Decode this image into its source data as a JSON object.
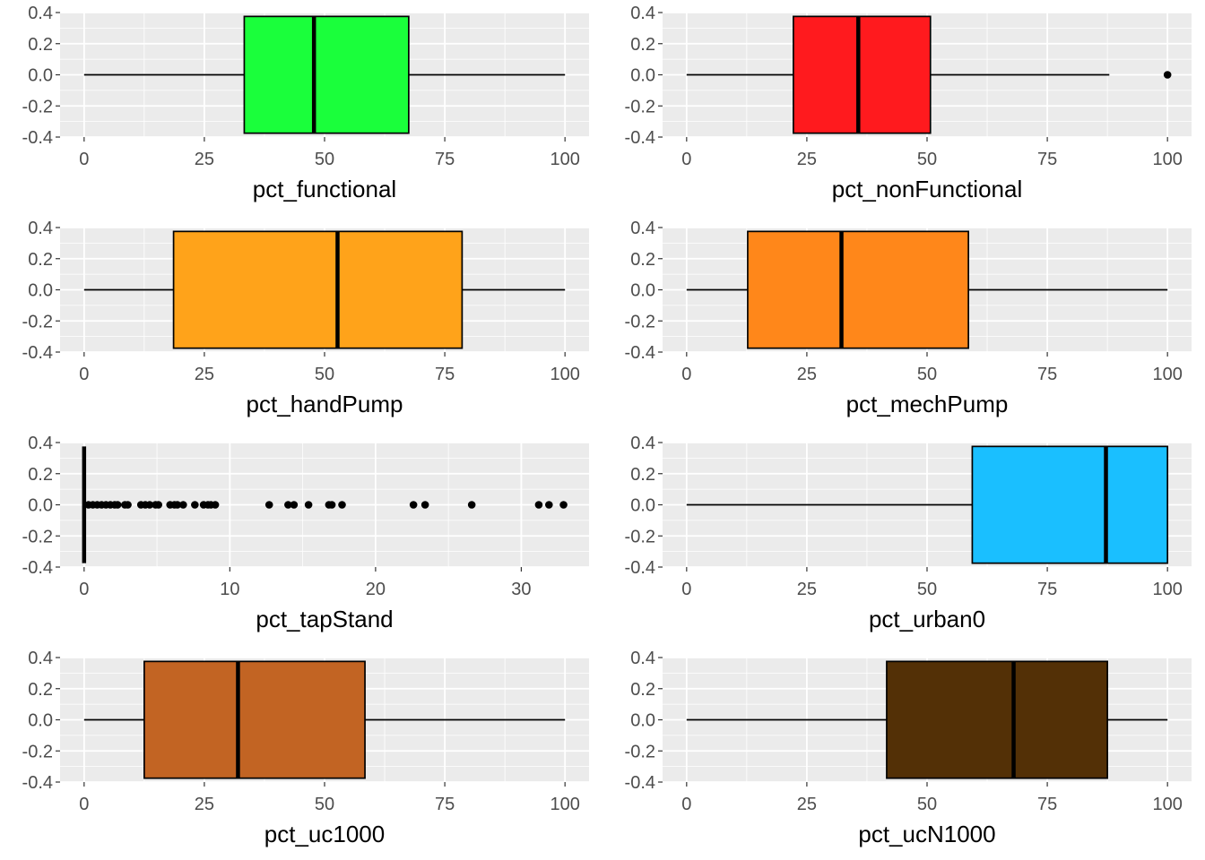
{
  "colors": {
    "panel_bg": "#ebebeb",
    "grid_major": "#ffffff",
    "tick_text": "#4d4d4d",
    "tick_line": "#333333"
  },
  "chart_data": [
    {
      "type": "boxplot",
      "xlabel": "pct_functional",
      "xlim": [
        -5,
        105
      ],
      "xticks": [
        0,
        25,
        50,
        75,
        100
      ],
      "ylim": [
        -0.4,
        0.4
      ],
      "yticks": [
        "0.4",
        "0.2",
        "0.0",
        "-0.2",
        "-0.4"
      ],
      "box": {
        "whisker_low": 0,
        "q1": 33.3,
        "median": 47.8,
        "q3": 67.5,
        "whisker_high": 100,
        "fill": "#1aff3b",
        "outliers": []
      }
    },
    {
      "type": "boxplot",
      "xlabel": "pct_nonFunctional",
      "xlim": [
        -5,
        105
      ],
      "xticks": [
        0,
        25,
        50,
        75,
        100
      ],
      "ylim": [
        -0.4,
        0.4
      ],
      "yticks": [
        "0.4",
        "0.2",
        "0.0",
        "-0.2",
        "-0.4"
      ],
      "box": {
        "whisker_low": 0,
        "q1": 22.2,
        "median": 35.7,
        "q3": 50.7,
        "whisker_high": 87.9,
        "fill": "#ff1a1e",
        "outliers": [
          100
        ]
      }
    },
    {
      "type": "boxplot",
      "xlabel": "pct_handPump",
      "xlim": [
        -5,
        105
      ],
      "xticks": [
        0,
        25,
        50,
        75,
        100
      ],
      "ylim": [
        -0.4,
        0.4
      ],
      "yticks": [
        "0.4",
        "0.2",
        "0.0",
        "-0.2",
        "-0.4"
      ],
      "box": {
        "whisker_low": 0,
        "q1": 18.6,
        "median": 52.7,
        "q3": 78.6,
        "whisker_high": 100,
        "fill": "#ffa31a",
        "outliers": []
      }
    },
    {
      "type": "boxplot",
      "xlabel": "pct_mechPump",
      "xlim": [
        -5,
        105
      ],
      "xticks": [
        0,
        25,
        50,
        75,
        100
      ],
      "ylim": [
        -0.4,
        0.4
      ],
      "yticks": [
        "0.4",
        "0.2",
        "0.0",
        "-0.2",
        "-0.4"
      ],
      "box": {
        "whisker_low": 0,
        "q1": 12.7,
        "median": 32.2,
        "q3": 58.6,
        "whisker_high": 100,
        "fill": "#ff871a",
        "outliers": []
      }
    },
    {
      "type": "boxplot",
      "xlabel": "pct_tapStand",
      "xlim": [
        -1.65,
        34.65
      ],
      "xticks": [
        0,
        10,
        20,
        30
      ],
      "ylim": [
        -0.4,
        0.4
      ],
      "yticks": [
        "0.4",
        "0.2",
        "0.0",
        "-0.2",
        "-0.4"
      ],
      "box": {
        "whisker_low": 0,
        "q1": 0,
        "median": 0,
        "q3": 0,
        "whisker_high": 0,
        "fill": "#1abfff",
        "outliers": [
          0.3,
          0.6,
          0.9,
          1.2,
          1.5,
          1.8,
          2.1,
          2.3,
          2.8,
          3.0,
          3.9,
          4.2,
          4.5,
          4.9,
          5.1,
          5.9,
          6.2,
          6.4,
          6.8,
          7.6,
          8.2,
          8.5,
          8.7,
          9.0,
          12.7,
          14.0,
          14.4,
          15.4,
          16.8,
          17.0,
          17.7,
          22.6,
          23.4,
          26.6,
          31.2,
          31.9,
          32.9
        ]
      }
    },
    {
      "type": "boxplot",
      "xlabel": "pct_urban0",
      "xlim": [
        -5,
        105
      ],
      "xticks": [
        0,
        25,
        50,
        75,
        100
      ],
      "ylim": [
        -0.4,
        0.4
      ],
      "yticks": [
        "0.4",
        "0.2",
        "0.0",
        "-0.2",
        "-0.4"
      ],
      "box": {
        "whisker_low": 0,
        "q1": 59.4,
        "median": 87.2,
        "q3": 100,
        "whisker_high": 100,
        "fill": "#1abfff",
        "outliers": []
      }
    },
    {
      "type": "boxplot",
      "xlabel": "pct_uc1000",
      "xlim": [
        -5,
        105
      ],
      "xticks": [
        0,
        25,
        50,
        75,
        100
      ],
      "ylim": [
        -0.4,
        0.4
      ],
      "yticks": [
        "0.4",
        "0.2",
        "0.0",
        "-0.2",
        "-0.4"
      ],
      "box": {
        "whisker_low": 0,
        "q1": 12.5,
        "median": 32.0,
        "q3": 58.4,
        "whisker_high": 100,
        "fill": "#c26423",
        "outliers": []
      }
    },
    {
      "type": "boxplot",
      "xlabel": "pct_ucN1000",
      "xlim": [
        -5,
        105
      ],
      "xticks": [
        0,
        25,
        50,
        75,
        100
      ],
      "ylim": [
        -0.4,
        0.4
      ],
      "yticks": [
        "0.4",
        "0.2",
        "0.0",
        "-0.2",
        "-0.4"
      ],
      "box": {
        "whisker_low": 0,
        "q1": 41.6,
        "median": 68.0,
        "q3": 87.5,
        "whisker_high": 100,
        "fill": "#533006",
        "outliers": []
      }
    }
  ]
}
